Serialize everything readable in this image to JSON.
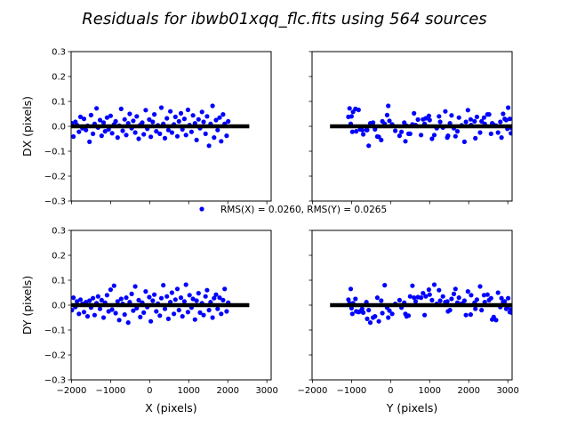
{
  "chart_data": {
    "type": "scatter",
    "title": "Residuals for ibwb01xqq_flc.fits using 564 sources",
    "legend": {
      "label": "RMS(X) = 0.0260, RMS(Y) = 0.0265",
      "placement": "center"
    },
    "marker_color": "#0000ff",
    "fit_line_color": "#000000",
    "xlim": [
      -2010,
      3110
    ],
    "ylim": [
      -0.3,
      0.3
    ],
    "xticks": [
      -2000,
      -1000,
      0,
      1000,
      2000,
      3000
    ],
    "xtick_labels": [
      "−2000",
      "−1000",
      "0",
      "1000",
      "2000",
      "3000"
    ],
    "yticks": [
      -0.3,
      -0.2,
      -0.1,
      0.0,
      0.1,
      0.2,
      0.3
    ],
    "ytick_labels": [
      "−0.3",
      "−0.2",
      "−0.1",
      "0.0",
      "0.1",
      "0.2",
      "0.3"
    ],
    "panels": [
      {
        "id": "dx-vs-x",
        "xfield": "x",
        "yfield": "dx",
        "ylabel": "DX (pixels)",
        "xlabel": "",
        "fit_range": [
          -2000,
          2550
        ]
      },
      {
        "id": "dx-vs-y",
        "xfield": "y",
        "yfield": "dx",
        "ylabel": "",
        "xlabel": "",
        "fit_range": [
          -1550,
          3110
        ]
      },
      {
        "id": "dy-vs-x",
        "xfield": "x",
        "yfield": "dy",
        "ylabel": "DY (pixels)",
        "xlabel": "X (pixels)",
        "fit_range": [
          -2000,
          2550
        ]
      },
      {
        "id": "dy-vs-y",
        "xfield": "y",
        "yfield": "dy",
        "ylabel": "",
        "xlabel": "Y (pixels)",
        "fit_range": [
          -1550,
          3110
        ]
      }
    ],
    "sources": {
      "x": [
        -1990,
        -1950,
        -1900,
        -1860,
        -1810,
        -1770,
        -1720,
        -1680,
        -1630,
        -1590,
        -1540,
        -1500,
        -1450,
        -1410,
        -1360,
        -1320,
        -1270,
        -1230,
        -1180,
        -1140,
        -1090,
        -1050,
        -1000,
        -960,
        -910,
        -870,
        -820,
        -780,
        -730,
        -690,
        -640,
        -600,
        -550,
        -510,
        -460,
        -420,
        -370,
        -330,
        -280,
        -240,
        -190,
        -150,
        -100,
        -60,
        -10,
        30,
        80,
        120,
        170,
        210,
        260,
        300,
        350,
        390,
        440,
        480,
        530,
        570,
        620,
        660,
        710,
        750,
        800,
        840,
        890,
        930,
        980,
        1020,
        1070,
        1110,
        1160,
        1200,
        1250,
        1290,
        1340,
        1380,
        1430,
        1470,
        1520,
        1560,
        1610,
        1650,
        1700,
        1740,
        1790,
        1830,
        1880,
        1920,
        1970,
        2010
      ],
      "y": [
        1520,
        -340,
        2810,
        640,
        -980,
        2210,
        1180,
        3050,
        -620,
        410,
        1890,
        -90,
        2570,
        870,
        -1050,
        1340,
        2960,
        230,
        -450,
        1710,
        2390,
        -780,
        980,
        3080,
        560,
        -210,
        1450,
        2700,
        -900,
        120,
        2050,
        780,
        -520,
        2880,
        1620,
        -30,
        2290,
        -1000,
        1060,
        2640,
        350,
        -700,
        1980,
        2990,
        700,
        -300,
        1270,
        2480,
        -880,
        1820,
        460,
        3010,
        -150,
        2170,
        900,
        -600,
        1400,
        2750,
        40,
        -1080,
        1660,
        2330,
        600,
        -400,
        2920,
        1120,
        -820,
        2060,
        280,
        1560,
        2600,
        -240,
        830,
        3100,
        -960,
        1930,
        500,
        1240,
        -560,
        2410,
        -60,
        2840,
        1000,
        -730,
        1750,
        380,
        2520,
        -1020,
        1470,
        2150
      ],
      "dx": [
        0.012,
        -0.041,
        0.018,
        0.005,
        -0.022,
        0.038,
        -0.008,
        0.03,
        -0.015,
        0.002,
        -0.062,
        0.045,
        -0.03,
        0.01,
        0.072,
        -0.005,
        0.025,
        -0.038,
        0.015,
        -0.02,
        0.035,
        -0.012,
        0.042,
        -0.028,
        0.008,
        0.02,
        -0.045,
        0.003,
        0.07,
        -0.018,
        0.028,
        -0.035,
        0.012,
        0.05,
        -0.008,
        0.022,
        -0.025,
        0.04,
        -0.05,
        0.006,
        0.015,
        -0.032,
        0.065,
        -0.01,
        0.027,
        -0.042,
        0.018,
        0.048,
        -0.02,
        0.004,
        -0.03,
        0.075,
        0.01,
        -0.048,
        0.032,
        -0.015,
        0.06,
        -0.025,
        0.008,
        0.038,
        -0.04,
        0.02,
        0.052,
        -0.012,
        0.03,
        -0.035,
        0.066,
        0.005,
        -0.022,
        0.044,
        0.012,
        -0.055,
        0.028,
        -0.008,
        0.058,
        0.018,
        -0.03,
        0.04,
        -0.078,
        0.01,
        0.082,
        -0.045,
        0.025,
        -0.015,
        0.035,
        -0.06,
        0.048,
        0.01,
        -0.038,
        0.02
      ],
      "dy": [
        -0.02,
        0.03,
        -0.008,
        0.015,
        -0.035,
        0.022,
        0.005,
        -0.028,
        0.012,
        -0.045,
        0.018,
        -0.01,
        0.028,
        -0.04,
        0.008,
        0.035,
        -0.015,
        0.02,
        -0.05,
        0.01,
        0.04,
        -0.025,
        0.062,
        -0.018,
        0.078,
        -0.032,
        0.015,
        -0.06,
        0.025,
        0.005,
        -0.038,
        0.03,
        -0.07,
        0.012,
        0.045,
        -0.022,
        0.075,
        -0.012,
        0.02,
        -0.048,
        0.01,
        -0.03,
        0.055,
        -0.008,
        0.032,
        -0.065,
        0.018,
        0.042,
        -0.025,
        0.006,
        -0.042,
        0.028,
        0.08,
        -0.015,
        0.035,
        -0.055,
        0.012,
        0.05,
        -0.035,
        0.022,
        0.065,
        -0.02,
        0.03,
        -0.045,
        0.015,
        0.082,
        -0.028,
        0.04,
        -0.01,
        0.025,
        -0.058,
        0.018,
        0.048,
        -0.03,
        0.008,
        -0.04,
        0.035,
        0.06,
        -0.02,
        0.012,
        -0.05,
        0.028,
        0.042,
        -0.015,
        0.03,
        -0.035,
        0.02,
        0.065,
        -0.025,
        0.01
      ]
    }
  }
}
